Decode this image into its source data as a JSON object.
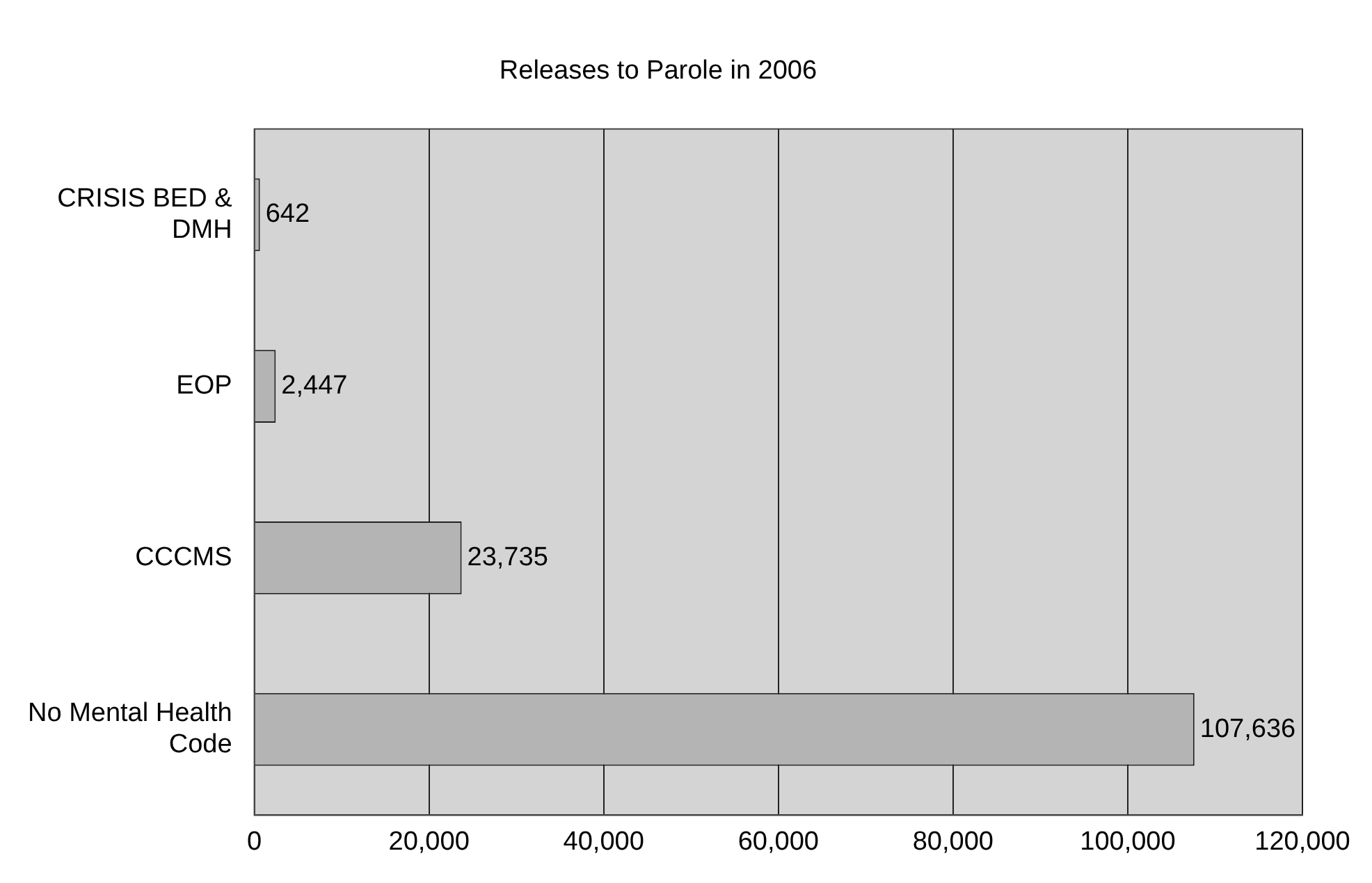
{
  "chart_data": {
    "type": "bar",
    "orientation": "horizontal",
    "title": "Releases to Parole in 2006",
    "categories": [
      "CRISIS BED & DMH",
      "EOP",
      "CCCMS",
      "No Mental Health Code"
    ],
    "values": [
      642,
      2447,
      23735,
      107636
    ],
    "color": "#b4b4b4",
    "xlim": [
      0,
      120000
    ],
    "xticks": [
      0,
      {
        "value": 20000,
        "label": "20,000"
      },
      {
        "value": 40000,
        "label": "40,000"
      },
      {
        "value": 60000,
        "label": "60,000"
      },
      {
        "value": 80000,
        "label": "80,000"
      },
      {
        "value": 100000,
        "label": "100,000"
      },
      {
        "value": 120000,
        "label": "120,000"
      }
    ],
    "value_labels": [
      "642",
      "2,447",
      "23,735",
      "107,636"
    ],
    "grid": "x",
    "legend": false
  }
}
